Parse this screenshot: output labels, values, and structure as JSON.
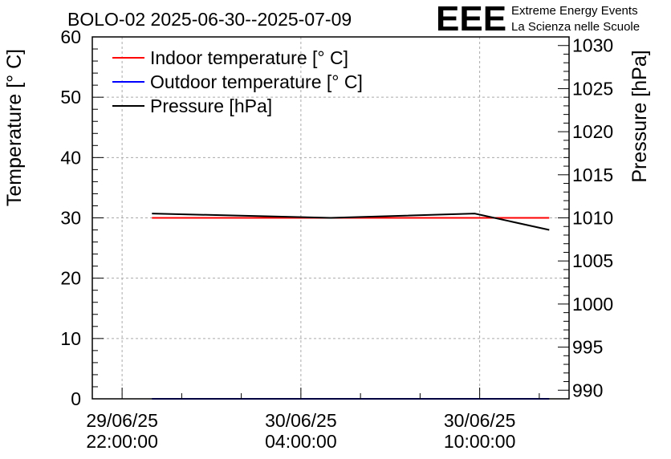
{
  "chart_data": {
    "type": "line",
    "title": "BOLO-02 2025-06-30--2025-07-09",
    "ylabel": "Temperature [° C]",
    "y2label": "Pressure [hPa]",
    "ylim": [
      0,
      60
    ],
    "y2lim": [
      989,
      1031
    ],
    "yticks": [
      "0",
      "10",
      "20",
      "30",
      "40",
      "50",
      "60"
    ],
    "y2ticks": [
      "990",
      "995",
      "1000",
      "1005",
      "1010",
      "1015",
      "1020",
      "1025",
      "1030"
    ],
    "x": [
      "2025-06-29 22:00:00",
      "2025-06-30 10:00:00"
    ],
    "xticks": [
      {
        "date": "29/06/25",
        "time": "22:00:00"
      },
      {
        "date": "30/06/25",
        "time": "04:00:00"
      },
      {
        "date": "30/06/25",
        "time": "10:00:00"
      }
    ],
    "xlim": [
      "2025-06-29 21:00:00",
      "2025-06-30 13:00:00"
    ],
    "grid": true,
    "legend_position": "top-left",
    "series": [
      {
        "name": "Indoor temperature [° C]",
        "axis": "left",
        "color": "#ff0000",
        "points": [
          {
            "x": "2025-06-29 23:00:00",
            "y": 30
          },
          {
            "x": "2025-06-30 05:00:00",
            "y": 30
          },
          {
            "x": "2025-06-30 09:50:00",
            "y": 30
          },
          {
            "x": "2025-06-30 12:20:00",
            "y": 30
          }
        ]
      },
      {
        "name": "Outdoor temperature [° C]",
        "axis": "left",
        "color": "#0000ff",
        "points": [
          {
            "x": "2025-06-29 23:00:00",
            "y": 0
          },
          {
            "x": "2025-06-30 05:00:00",
            "y": 0
          },
          {
            "x": "2025-06-30 09:50:00",
            "y": 0
          },
          {
            "x": "2025-06-30 12:20:00",
            "y": 0
          }
        ]
      },
      {
        "name": "Pressure [hPa]",
        "axis": "right",
        "color": "#000000",
        "points": [
          {
            "x": "2025-06-29 23:00:00",
            "y": 1010.5
          },
          {
            "x": "2025-06-30 05:00:00",
            "y": 1010.0
          },
          {
            "x": "2025-06-30 09:50:00",
            "y": 1010.5
          },
          {
            "x": "2025-06-30 12:20:00",
            "y": 1008.6
          }
        ]
      }
    ]
  },
  "logo": {
    "text": "EEE",
    "line1": "Extreme Energy Events",
    "line2": "La Scienza nelle Scuole",
    "color": "#0000ff"
  }
}
